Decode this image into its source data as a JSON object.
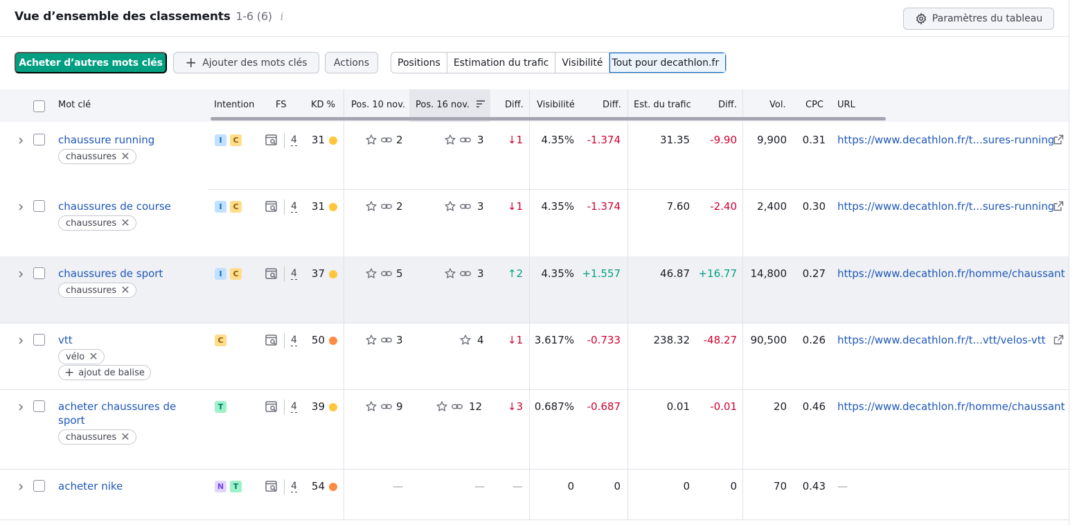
{
  "header": {
    "title": "Vue d’ensemble des classements",
    "count": "1-6 (6)",
    "info_icon": "i",
    "settings_label": "Paramètres du tableau"
  },
  "toolbar": {
    "buy_label": "Acheter d’autres mots clés",
    "add_label": "Ajouter des mots clés",
    "actions_label": "Actions",
    "segments": [
      "Positions",
      "Estimation du trafic",
      "Visibilité",
      "Tout pour decathlon.fr"
    ]
  },
  "columns": {
    "keyword": "Mot clé",
    "intent": "Intention",
    "fs": "FS",
    "kd": "KD %",
    "pos1": "Pos. 10 nov.",
    "pos2": "Pos. 16 nov.",
    "diff": "Diff.",
    "vis": "Visibilité",
    "vis_diff": "Diff.",
    "traffic": "Est. du trafic",
    "traffic_diff": "Diff.",
    "vol": "Vol.",
    "cpc": "CPC",
    "url": "URL"
  },
  "rows": [
    {
      "keyword": "chaussure running",
      "tags": [
        "chaussures"
      ],
      "add_tag": "",
      "intents": [
        "I",
        "C"
      ],
      "fs": "4",
      "kd": "31",
      "kd_color": "#ffc53d",
      "pos1": "2",
      "pos2": "3",
      "diff": "↓1",
      "diff_dir": "down",
      "vis": "4.35%",
      "vis_diff": "-1.374",
      "traffic": "31.35",
      "traffic_diff": "-9.90",
      "vol": "9,900",
      "cpc": "0.31",
      "url": "https://www.decathlon.fr/t...sures-running",
      "ext": true
    },
    {
      "keyword": "chaussures de course",
      "tags": [
        "chaussures"
      ],
      "add_tag": "",
      "intents": [
        "I",
        "C"
      ],
      "fs": "4",
      "kd": "31",
      "kd_color": "#ffc53d",
      "pos1": "2",
      "pos2": "3",
      "diff": "↓1",
      "diff_dir": "down",
      "vis": "4.35%",
      "vis_diff": "-1.374",
      "traffic": "7.60",
      "traffic_diff": "-2.40",
      "vol": "2,400",
      "cpc": "0.30",
      "url": "https://www.decathlon.fr/t...sures-running",
      "ext": true
    },
    {
      "keyword": "chaussures de sport",
      "tags": [
        "chaussures"
      ],
      "add_tag": "",
      "intents": [
        "I",
        "C"
      ],
      "fs": "4",
      "kd": "37",
      "kd_color": "#ffc53d",
      "pos1": "5",
      "pos2": "3",
      "diff": "↑2",
      "diff_dir": "up",
      "vis": "4.35%",
      "vis_diff": "+1.557",
      "traffic": "46.87",
      "traffic_diff": "+16.77",
      "vol": "14,800",
      "cpc": "0.27",
      "url": "https://www.decathlon.fr/homme/chaussant",
      "ext": false
    },
    {
      "keyword": "vtt",
      "tags": [
        "vélo"
      ],
      "add_tag": "ajout de balise",
      "intents": [
        "C"
      ],
      "fs": "4",
      "kd": "50",
      "kd_color": "#ff8c43",
      "pos1": "3",
      "pos2": "4",
      "diff": "↓1",
      "diff_dir": "down",
      "vis": "3.617%",
      "vis_diff": "-0.733",
      "traffic": "238.32",
      "traffic_diff": "-48.27",
      "vol": "90,500",
      "cpc": "0.26",
      "url": "https://www.decathlon.fr/t...vtt/velos-vtt",
      "ext": true
    },
    {
      "keyword": "acheter chaussures de sport",
      "tags": [
        "chaussures"
      ],
      "add_tag": "",
      "intents": [
        "T"
      ],
      "fs": "4",
      "kd": "39",
      "kd_color": "#ffc53d",
      "pos1": "9",
      "pos2": "12",
      "diff": "↓3",
      "diff_dir": "down",
      "vis": "0.687%",
      "vis_diff": "-0.687",
      "traffic": "0.01",
      "traffic_diff": "-0.01",
      "vol": "20",
      "cpc": "0.46",
      "url": "https://www.decathlon.fr/homme/chaussant",
      "ext": false
    },
    {
      "keyword": "acheter nike",
      "tags": [],
      "add_tag": "",
      "intents": [
        "N",
        "T"
      ],
      "fs": "4",
      "kd": "54",
      "kd_color": "#ff8c43",
      "pos1": "—",
      "pos2": "—",
      "diff": "—",
      "diff_dir": "none",
      "vis": "0",
      "vis_diff": "0",
      "traffic": "0",
      "traffic_diff": "0",
      "vol": "70",
      "cpc": "0.43",
      "url": "—",
      "ext": false
    }
  ]
}
